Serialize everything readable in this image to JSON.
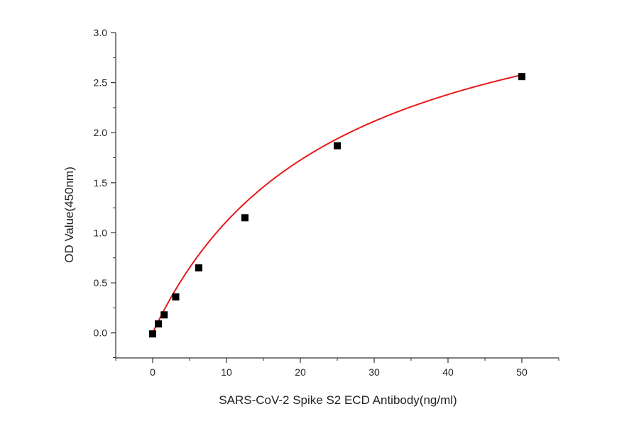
{
  "chart_data": {
    "type": "scatter",
    "title": "",
    "xlabel": "SARS-CoV-2 Spike S2 ECD Antibody(ng/ml)",
    "ylabel": "OD Value(450nm)",
    "xlim": [
      -5,
      55
    ],
    "ylim": [
      -0.25,
      3.0
    ],
    "xticks": [
      0,
      10,
      20,
      30,
      40,
      50
    ],
    "xtick_labels": [
      "0",
      "10",
      "20",
      "30",
      "40",
      "50"
    ],
    "yticks": [
      0.0,
      0.5,
      1.0,
      1.5,
      2.0,
      2.5,
      3.0
    ],
    "ytick_labels": [
      "0.0",
      "0.5",
      "1.0",
      "1.5",
      "2.0",
      "2.5",
      "3.0"
    ],
    "grid": false,
    "series": [
      {
        "x": [
          0,
          0.78,
          1.56,
          3.125,
          6.25,
          12.5,
          25,
          50
        ],
        "y": [
          -0.01,
          0.09,
          0.18,
          0.36,
          0.65,
          1.15,
          1.87,
          2.56
        ],
        "marker": "square",
        "color": "#000000"
      }
    ],
    "fit_curve": {
      "type": "hyperbolic",
      "vmax": 3.84,
      "km": 24.5,
      "color": "#e8191b"
    }
  }
}
